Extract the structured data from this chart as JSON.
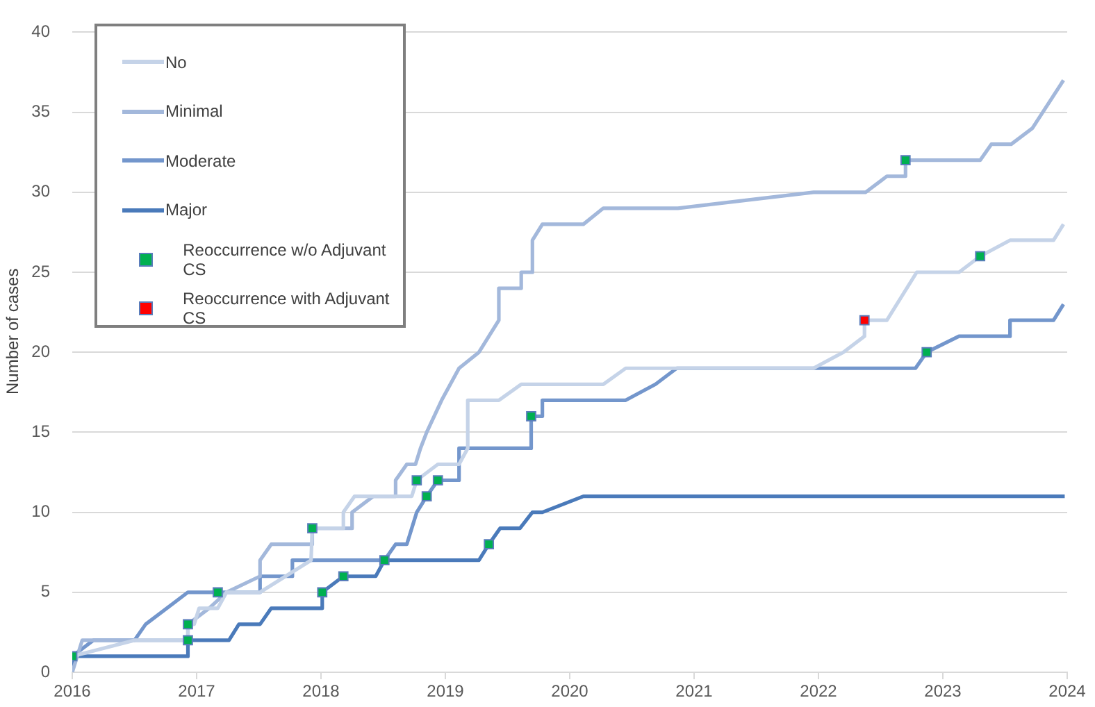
{
  "chart_data": {
    "type": "line",
    "ylabel": "Number of cases",
    "xlim": [
      2016,
      2024
    ],
    "xticks": [
      2016,
      2017,
      2018,
      2019,
      2020,
      2021,
      2022,
      2023,
      2024
    ],
    "ylim": [
      0,
      40
    ],
    "yticks": [
      0,
      5,
      10,
      15,
      20,
      25,
      30,
      35,
      40
    ],
    "grid": "y",
    "legend": "top left",
    "series": [
      {
        "name": "No",
        "color": "#c5d3e8",
        "x": [
          2016,
          2016.5,
          2016.93,
          2016.93,
          2016.98,
          2017.02,
          2017.17,
          2017.24,
          2017.51,
          2017.92,
          2017.93,
          2018.18,
          2018.18,
          2018.27,
          2018.73,
          2018.77,
          2018.94,
          2019.11,
          2019.18,
          2019.18,
          2019.43,
          2019.61,
          2020.27,
          2020.45,
          2021.96,
          2022.2,
          2022.37,
          2022.37,
          2022.55,
          2022.79,
          2023.13,
          2023.3,
          2023.54,
          2023.89,
          2023.97
        ],
        "values": [
          1,
          2,
          2,
          3,
          3,
          4,
          4,
          5,
          5,
          7,
          9,
          9,
          10,
          11,
          11,
          12,
          13,
          13,
          14,
          17,
          17,
          18,
          18,
          19,
          19,
          20,
          21,
          22,
          22,
          25,
          25,
          26,
          27,
          27,
          28
        ]
      },
      {
        "name": "Minimal",
        "color": "#a3b8db",
        "x": [
          2016,
          2016.08,
          2016.93,
          2016.93,
          2017.1,
          2017.24,
          2017.51,
          2017.51,
          2017.6,
          2017.93,
          2017.93,
          2018.25,
          2018.25,
          2018.42,
          2018.6,
          2018.6,
          2018.69,
          2018.76,
          2018.8,
          2018.85,
          2018.97,
          2019.11,
          2019.27,
          2019.35,
          2019.43,
          2019.43,
          2019.61,
          2019.61,
          2019.7,
          2019.7,
          2019.78,
          2020.11,
          2020.27,
          2020.87,
          2021.96,
          2022.38,
          2022.55,
          2022.7,
          2022.7,
          2023.3,
          2023.39,
          2023.55,
          2023.72,
          2023.97
        ],
        "values": [
          0,
          2,
          2,
          3,
          4,
          5,
          6,
          7,
          8,
          8,
          9,
          9,
          10,
          11,
          11,
          12,
          13,
          13,
          14,
          15,
          17,
          19,
          20,
          21,
          22,
          24,
          24,
          25,
          25,
          27,
          28,
          28,
          29,
          29,
          30,
          30,
          31,
          31,
          32,
          32,
          33,
          33,
          34,
          37
        ]
      },
      {
        "name": "Moderate",
        "color": "#7396cc",
        "x": [
          2016,
          2016.17,
          2016.5,
          2016.59,
          2016.93,
          2017.51,
          2017.51,
          2017.77,
          2017.77,
          2018.51,
          2018.6,
          2018.69,
          2018.73,
          2018.77,
          2018.85,
          2018.94,
          2019.11,
          2019.11,
          2019.69,
          2019.69,
          2019.78,
          2019.78,
          2020.45,
          2020.69,
          2020.86,
          2022.78,
          2022.87,
          2023.13,
          2023.54,
          2023.54,
          2023.89,
          2023.97
        ],
        "values": [
          1,
          2,
          2,
          3,
          5,
          5,
          6,
          6,
          7,
          7,
          8,
          8,
          9,
          10,
          11,
          12,
          12,
          14,
          14,
          16,
          16,
          17,
          17,
          18,
          19,
          19,
          20,
          21,
          21,
          22,
          22,
          23
        ]
      },
      {
        "name": "Major",
        "color": "#4a7aba",
        "x": [
          2016,
          2016,
          2016.93,
          2016.93,
          2017.26,
          2017.34,
          2017.51,
          2017.6,
          2018,
          2018.01,
          2018.18,
          2018.44,
          2018.51,
          2019.27,
          2019.35,
          2019.44,
          2019.6,
          2019.7,
          2019.78,
          2020.11,
          2023.98
        ],
        "values": [
          0,
          1,
          1,
          2,
          2,
          3,
          3,
          4,
          4,
          5,
          6,
          6,
          7,
          7,
          8,
          9,
          9,
          10,
          10,
          11,
          11
        ]
      },
      {
        "name": "Reoccurrence w/o Adjuvant CS",
        "type": "scatter",
        "marker": "square",
        "color": "#00b050",
        "x": [
          2016,
          2016.93,
          2016.93,
          2017.17,
          2017.93,
          2018.01,
          2018.18,
          2018.51,
          2018.77,
          2018.85,
          2018.94,
          2019.35,
          2019.69,
          2022.7,
          2022.87,
          2023.3
        ],
        "values": [
          1,
          3,
          2,
          5,
          9,
          5,
          6,
          7,
          12,
          11,
          12,
          8,
          16,
          32,
          20,
          26
        ]
      },
      {
        "name": "Reoccurrence with Adjuvant CS",
        "type": "scatter",
        "marker": "square",
        "color": "#ff0000",
        "x": [
          2022.37
        ],
        "values": [
          22
        ]
      }
    ]
  }
}
